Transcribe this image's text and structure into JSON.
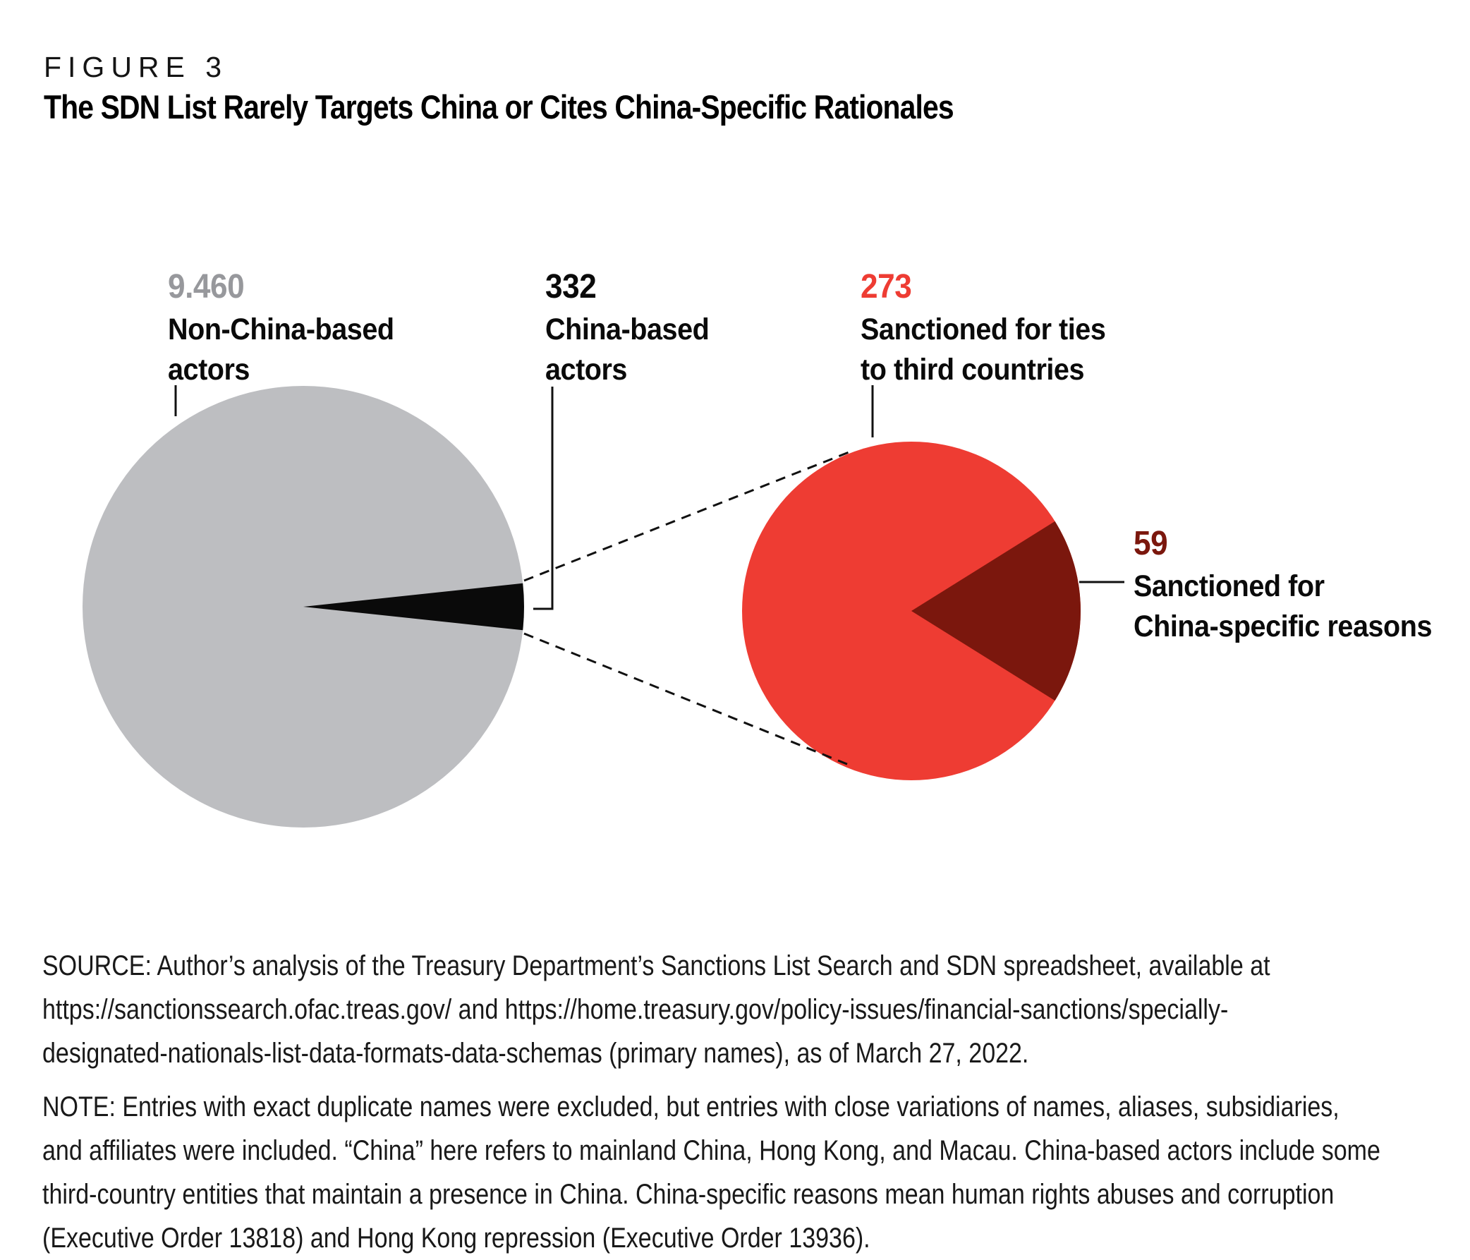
{
  "figure": {
    "label": "FIGURE 3",
    "title": "The SDN List Rarely Targets China or Cites China-Specific Rationales"
  },
  "chart_data": {
    "type": "pie",
    "title": "The SDN List Rarely Targets China or Cites China-Specific Rationales",
    "grid": false,
    "legend_position": "callout-labels",
    "charts": [
      {
        "name": "SDN List entries by actor location",
        "slices": [
          {
            "label": "Non-China-based actors",
            "value": 9460,
            "display": "9.460",
            "color": "#bdbec1"
          },
          {
            "label": "China-based actors",
            "value": 332,
            "display": "332",
            "color": "#0a0a0a"
          }
        ]
      },
      {
        "name": "China-based actors by sanction rationale (exploded detail of China-based slice)",
        "slices": [
          {
            "label": "Sanctioned for ties to third countries",
            "value": 273,
            "display": "273",
            "color": "#ee3c33"
          },
          {
            "label": "Sanctioned for China-specific reasons",
            "value": 59,
            "display": "59",
            "color": "#7b170d"
          }
        ]
      }
    ]
  },
  "callouts": {
    "non_china": {
      "value": "9.460",
      "value_color": "#97989c",
      "lines": [
        "Non-China-based",
        "actors"
      ]
    },
    "china": {
      "value": "332",
      "value_color": "#0a0a0a",
      "lines": [
        "China-based",
        "actors"
      ]
    },
    "third_country": {
      "value": "273",
      "value_color": "#ee3c33",
      "lines": [
        "Sanctioned for ties",
        "to third countries"
      ]
    },
    "china_specific": {
      "value": "59",
      "value_color": "#7b170d",
      "lines": [
        "Sanctioned for",
        "China-specific reasons"
      ]
    }
  },
  "source": {
    "lines": [
      "SOURCE: Author’s analysis of the Treasury Department’s Sanctions List Search and SDN spreadsheet, available at",
      "https://sanctionssearch.ofac.treas.gov/ and https://home.treasury.gov/policy-issues/financial-sanctions/specially-",
      "designated-nationals-list-data-formats-data-schemas (primary names), as of March 27, 2022."
    ]
  },
  "note": {
    "lines": [
      "NOTE: Entries with exact duplicate names were excluded, but entries with close variations of names, aliases, subsidiaries,",
      "and affiliates were included. “China” here refers to mainland China, Hong Kong, and Macau. China-based actors include some",
      "third-country entities that maintain a presence in China. China-specific reasons mean human rights abuses and corruption",
      "(Executive Order 13818) and Hong Kong repression (Executive Order 13936)."
    ]
  }
}
